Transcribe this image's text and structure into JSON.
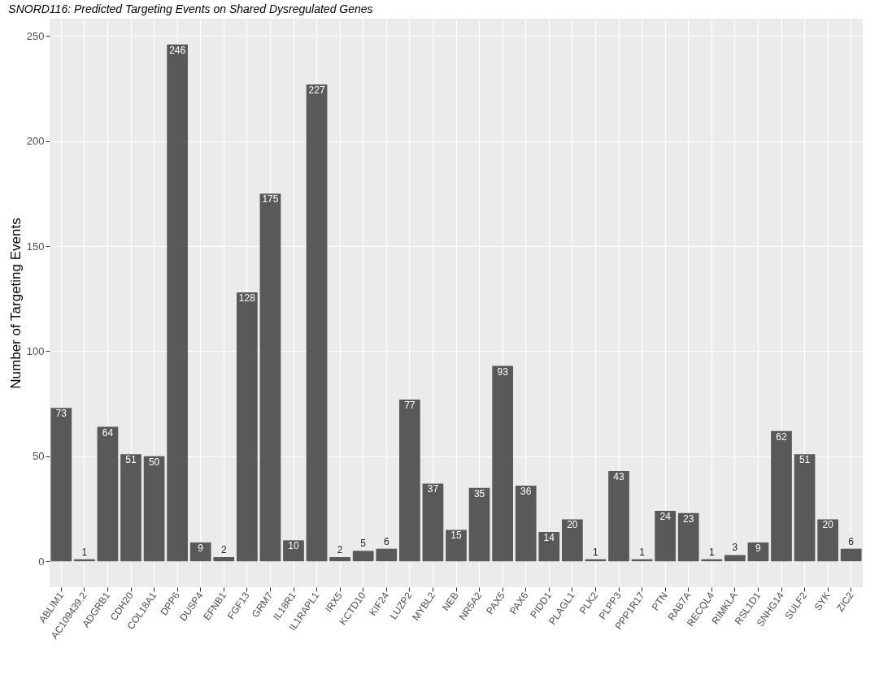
{
  "chart_data": {
    "type": "bar",
    "title": "SNORD116: Predicted Targeting Events on Shared Dysregulated Genes",
    "ylabel": "Number of Targeting Events",
    "categories": [
      "ABLIM1",
      "AC109439.2",
      "ADGRB1",
      "CDH20",
      "COL18A1",
      "DPP6",
      "DUSP4",
      "EFNB1",
      "FGF13",
      "GRM7",
      "IL18R1",
      "IL1RAPL1",
      "IRX5",
      "KCTD10",
      "KIF24",
      "LUZP2",
      "MYBL2",
      "NEB",
      "NR5A2",
      "PAX5",
      "PAX6",
      "PIDD1",
      "PLAGL1",
      "PLK2",
      "PLPP3",
      "PPP1R17",
      "PTN",
      "RAB7A",
      "RECQL4",
      "RIMKLA",
      "RSL1D1",
      "SNHG14",
      "SULF2",
      "SYK",
      "ZIC2"
    ],
    "values": [
      73,
      1,
      64,
      51,
      50,
      246,
      9,
      2,
      128,
      175,
      10,
      227,
      2,
      5,
      6,
      77,
      37,
      15,
      35,
      93,
      36,
      14,
      20,
      1,
      43,
      1,
      24,
      23,
      1,
      3,
      9,
      62,
      51,
      20,
      6
    ],
    "color": "#595959",
    "ylim": [
      -12.3,
      258.3
    ],
    "yticks": [
      0,
      50,
      100,
      150,
      200,
      250
    ],
    "grid": true,
    "data_labels": true
  }
}
